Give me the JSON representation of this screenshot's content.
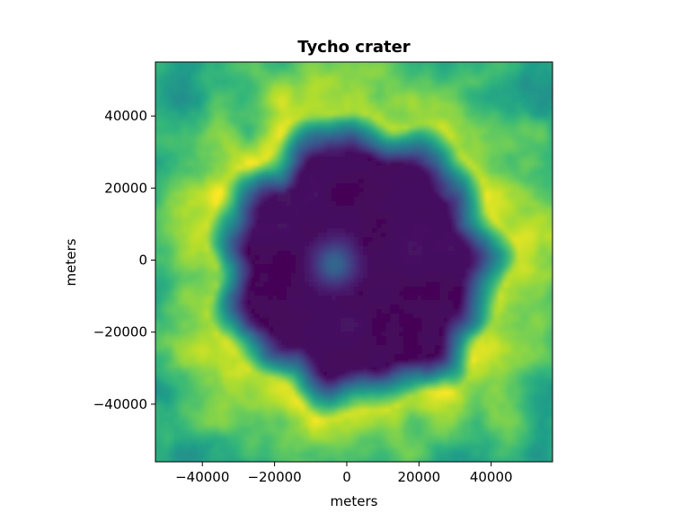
{
  "chart_data": {
    "type": "heatmap",
    "title": "Tycho crater",
    "xlabel": "meters",
    "ylabel": "meters",
    "xlim": [
      -53000,
      57000
    ],
    "ylim": [
      -56000,
      55000
    ],
    "xticks": [
      -40000,
      -20000,
      0,
      20000,
      40000
    ],
    "yticks": [
      -40000,
      -20000,
      0,
      20000,
      40000
    ],
    "xtick_labels": [
      "−40000",
      "−20000",
      "0",
      "20000",
      "40000"
    ],
    "ytick_labels": [
      "−40000",
      "−20000",
      "0",
      "20000",
      "40000"
    ],
    "colormap": "viridis",
    "colorbar": false,
    "grid": false,
    "features": {
      "crater_center": [
        3000,
        -1000
      ],
      "crater_floor_radius": 30000,
      "crater_rim_radius": 42000,
      "central_peak_center": [
        -3000,
        -1000
      ],
      "central_peak_radius": 6000
    }
  }
}
